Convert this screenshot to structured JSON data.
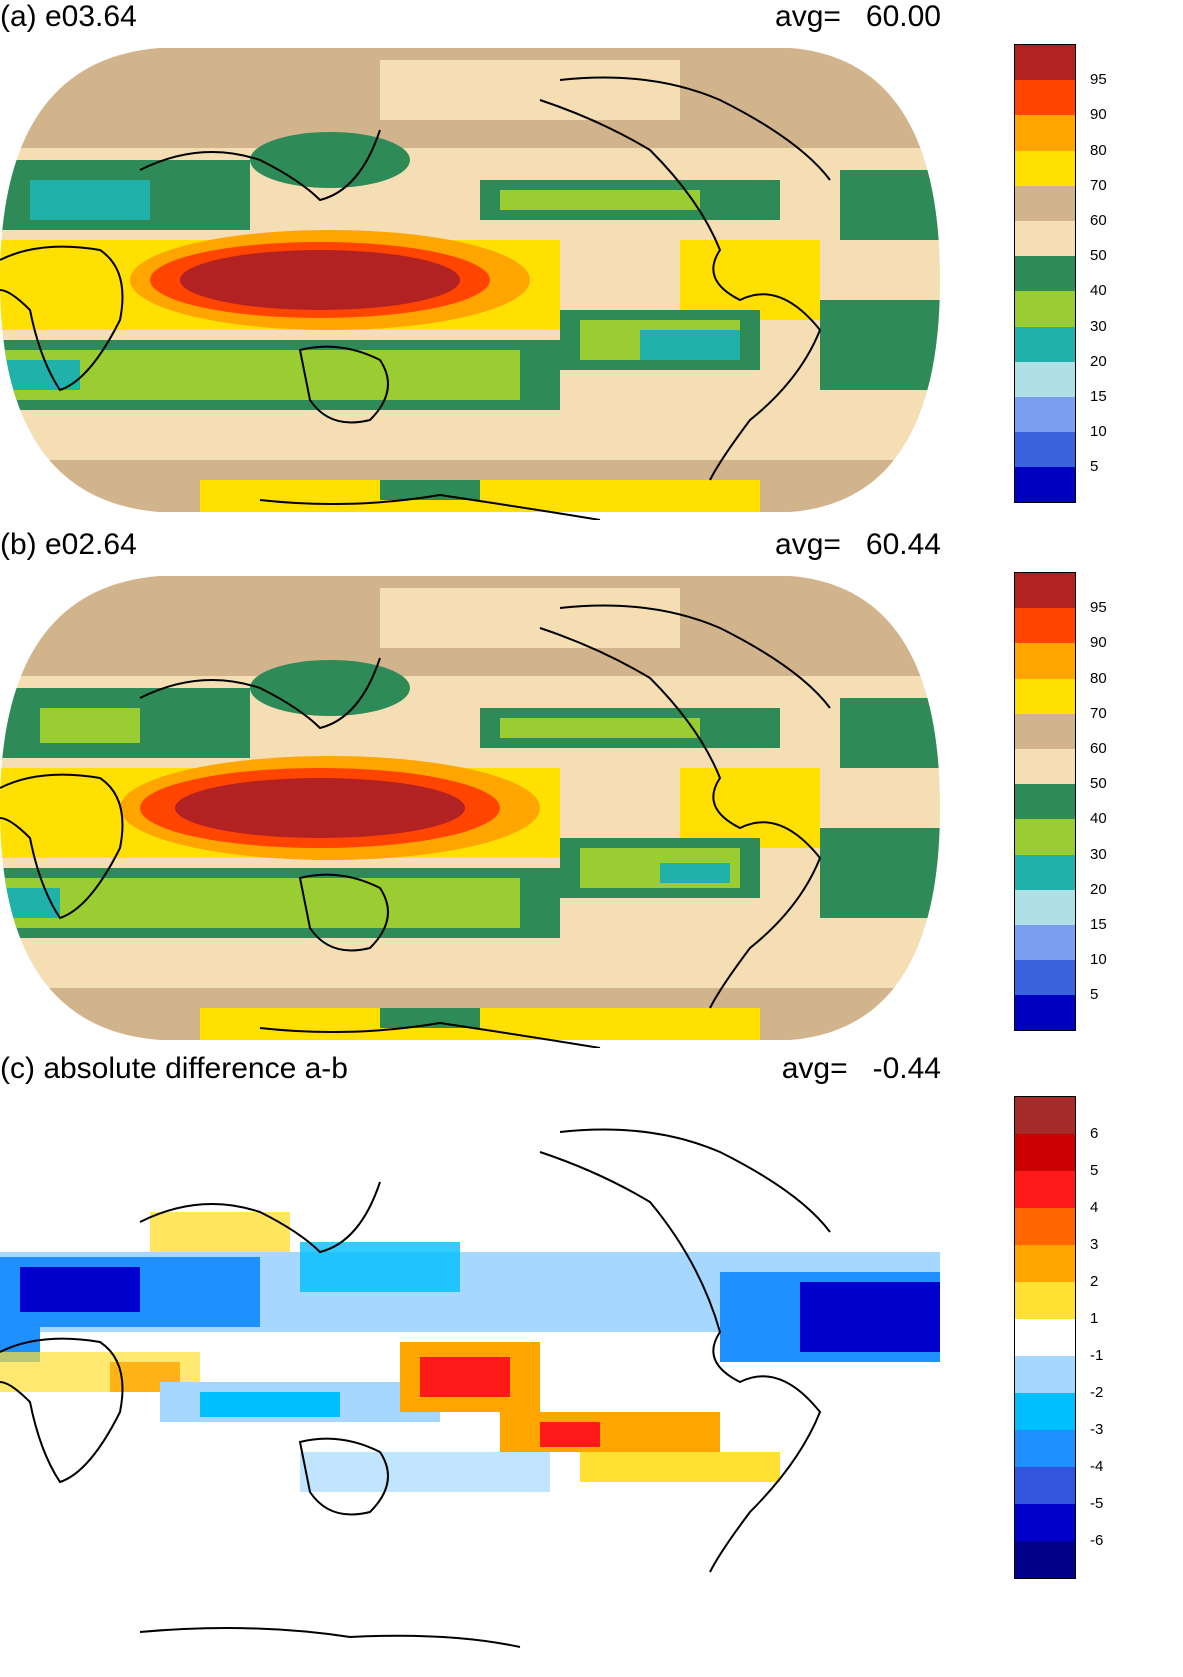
{
  "panels": [
    {
      "title": "(a) e03.64",
      "avg_label": "avg=",
      "avg_value": "60.00",
      "colorbar": {
        "colors": [
          "#0000c0",
          "#3b63e0",
          "#7b9ef0",
          "#b0e0e6",
          "#20b2aa",
          "#9acd32",
          "#2e8b57",
          "#f5deb3",
          "#d2b48c",
          "#ffe000",
          "#ffa500",
          "#ff4500",
          "#b22222"
        ],
        "labels": [
          "5",
          "10",
          "15",
          "20",
          "30",
          "40",
          "50",
          "60",
          "70",
          "80",
          "90",
          "95"
        ]
      }
    },
    {
      "title": "(b) e02.64",
      "avg_label": "avg=",
      "avg_value": "60.44",
      "colorbar": {
        "colors": [
          "#0000c0",
          "#3b63e0",
          "#7b9ef0",
          "#b0e0e6",
          "#20b2aa",
          "#9acd32",
          "#2e8b57",
          "#f5deb3",
          "#d2b48c",
          "#ffe000",
          "#ffa500",
          "#ff4500",
          "#b22222"
        ],
        "labels": [
          "5",
          "10",
          "15",
          "20",
          "30",
          "40",
          "50",
          "60",
          "70",
          "80",
          "90",
          "95"
        ]
      }
    },
    {
      "title": "(c) absolute difference a-b",
      "avg_label": "avg=",
      "avg_value": "-0.44",
      "colorbar": {
        "colors": [
          "#00008b",
          "#0000cd",
          "#3355dd",
          "#1e90ff",
          "#00bfff",
          "#a6d8ff",
          "#ffffff",
          "#ffe033",
          "#ffa500",
          "#ff6600",
          "#ff1a1a",
          "#cc0000",
          "#a52a2a"
        ],
        "labels": [
          "-6",
          "-5",
          "-4",
          "-3",
          "-2",
          "-1",
          "1",
          "2",
          "3",
          "4",
          "5",
          "6"
        ]
      }
    }
  ]
}
